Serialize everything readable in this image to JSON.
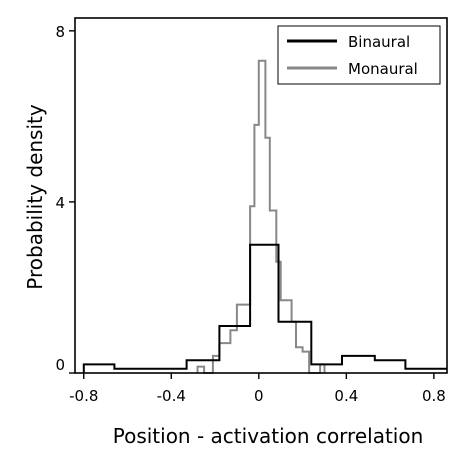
{
  "chart_data": {
    "type": "histogram",
    "xlabel": "Position - activation correlation",
    "ylabel": "Probability density",
    "xlim": [
      -0.84,
      0.86
    ],
    "ylim": [
      0,
      8.3
    ],
    "xticks": [
      -0.8,
      -0.4,
      0,
      0.4,
      0.8
    ],
    "xtick_labels": [
      "-0.8",
      "-0.4",
      "0",
      "0.4",
      "0.8"
    ],
    "yticks": [
      0,
      4,
      8
    ],
    "ytick_labels": [
      "0",
      "4",
      "8"
    ],
    "legend_position": "top-right",
    "grid": false,
    "series": [
      {
        "name": "Binaural",
        "color": "#000000",
        "steps": [
          [
            -0.8,
            0.2
          ],
          [
            -0.66,
            0.1
          ],
          [
            -0.33,
            0.3
          ],
          [
            -0.18,
            1.1
          ],
          [
            -0.04,
            3.0
          ],
          [
            0.09,
            1.2
          ],
          [
            0.24,
            0.2
          ],
          [
            0.38,
            0.4
          ],
          [
            0.53,
            0.3
          ],
          [
            0.67,
            0.1
          ],
          [
            0.82,
            0.1
          ]
        ]
      },
      {
        "name": "Monaural",
        "color": "#888888",
        "steps": [
          [
            -0.28,
            0.15
          ],
          [
            -0.25,
            0.0
          ],
          [
            -0.21,
            0.4
          ],
          [
            -0.18,
            0.7
          ],
          [
            -0.13,
            1.0
          ],
          [
            -0.1,
            1.6
          ],
          [
            -0.04,
            3.9
          ],
          [
            -0.02,
            5.8
          ],
          [
            0.0,
            7.3
          ],
          [
            0.03,
            5.5
          ],
          [
            0.05,
            3.8
          ],
          [
            0.08,
            2.6
          ],
          [
            0.1,
            1.7
          ],
          [
            0.15,
            1.2
          ],
          [
            0.17,
            0.6
          ],
          [
            0.2,
            0.5
          ],
          [
            0.23,
            0.0
          ],
          [
            0.28,
            0.2
          ],
          [
            0.3,
            0.0
          ]
        ]
      }
    ]
  }
}
